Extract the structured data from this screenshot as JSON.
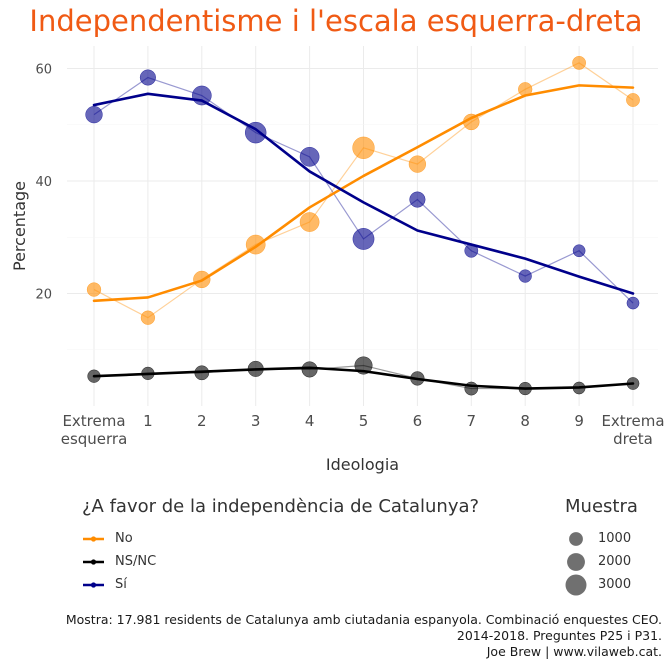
{
  "chart_data": {
    "type": "line",
    "title": "Independentisme i l'escala esquerra-dreta",
    "xlabel": "Ideologia",
    "ylabel": "Percentage",
    "x_categories": [
      "Extrema\nesquerra",
      "1",
      "2",
      "3",
      "4",
      "5",
      "6",
      "7",
      "8",
      "9",
      "Extrema\ndreta"
    ],
    "yticks": [
      20,
      40,
      60
    ],
    "ylim": [
      0,
      64
    ],
    "grid": true,
    "series": [
      {
        "name": "No",
        "color": "#ff8c00",
        "points": [
          20.7,
          15.7,
          22.5,
          28.7,
          32.7,
          45.9,
          43.0,
          50.5,
          56.3,
          61.0,
          54.4
        ],
        "sizes": [
          1000,
          1000,
          1700,
          2400,
          2400,
          3300,
          1700,
          1500,
          1000,
          900,
          900
        ],
        "smooth": [
          18.7,
          19.3,
          22.3,
          28.3,
          35.3,
          40.9,
          46.0,
          51.2,
          55.2,
          57.0,
          56.6
        ]
      },
      {
        "name": "NS/NC",
        "color": "#000000",
        "points": [
          5.3,
          5.8,
          5.9,
          6.6,
          6.5,
          7.2,
          4.9,
          3.1,
          3.1,
          3.2,
          4.0
        ],
        "sizes": [
          800,
          800,
          1100,
          1400,
          1400,
          1900,
          1000,
          900,
          800,
          700,
          700
        ],
        "smooth": [
          5.3,
          5.7,
          6.1,
          6.5,
          6.8,
          6.2,
          4.8,
          3.6,
          3.1,
          3.3,
          4.0
        ]
      },
      {
        "name": "Sí",
        "color": "#00008b",
        "points": [
          51.8,
          58.4,
          55.2,
          48.6,
          44.3,
          29.7,
          36.7,
          27.6,
          23.1,
          27.6,
          18.3
        ],
        "sizes": [
          1700,
          1400,
          2400,
          3000,
          2400,
          3100,
          1400,
          900,
          800,
          700,
          700
        ],
        "smooth": [
          53.5,
          55.5,
          54.3,
          49.2,
          41.7,
          36.2,
          31.2,
          28.7,
          26.2,
          23.0,
          20.0
        ]
      }
    ],
    "size_legend": {
      "title": "Muestra",
      "values": [
        1000,
        2000,
        3000
      ]
    }
  },
  "legend": {
    "title": "¿A favor de la independència de Catalunya?",
    "items": [
      "No",
      "NS/NC",
      "Sí"
    ],
    "colors": [
      "#ff8c00",
      "#000000",
      "#00008b"
    ],
    "size_title": "Muestra",
    "size_labels": [
      "1000",
      "2000",
      "3000"
    ]
  },
  "caption": [
    "Mostra: 17.981 residents de Catalunya amb ciutadania espanyola. Combinació enquestes CEO.",
    "2014-2018. Preguntes P25 i P31.",
    "Joe Brew | www.vilaweb.cat."
  ]
}
